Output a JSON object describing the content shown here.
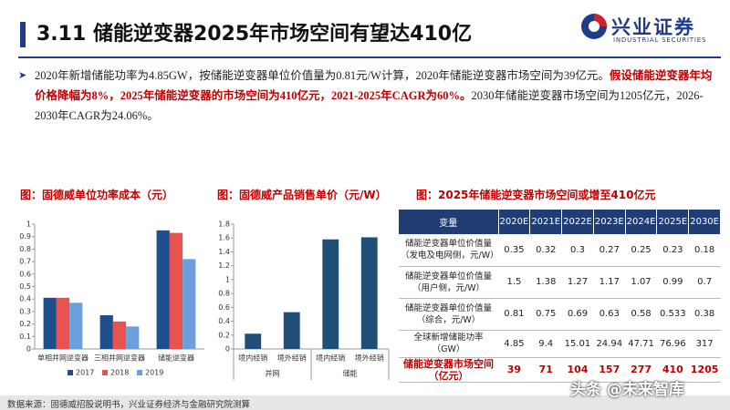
{
  "header": {
    "title": "3.11 储能逆变器2025年市场空间有望达410亿",
    "logo_name": "兴业证券",
    "logo_en": "INDUSTRIAL SECURITIES"
  },
  "bullet": {
    "segments": [
      {
        "text": "2020年新增储能功率为4.85GW，按储能逆变器单位价值量为0.81元/W计算，2020年储能逆变器市场空间为39亿元。",
        "highlight": false
      },
      {
        "text": "假设储能逆变器年均价格降幅为8%，2025年储能逆变器的市场空间为410亿元，2021-2025年CAGR为60%。",
        "highlight": true
      },
      {
        "text": "2030年储能逆变器市场空间为1205亿元，2026-2030年CAGR为24.06%。",
        "highlight": false
      }
    ]
  },
  "chart_data": [
    {
      "type": "bar",
      "title": "图：固德威单位功率成本（元）",
      "categories": [
        "单相并网逆变器",
        "三相并网逆变器",
        "储能逆变器"
      ],
      "series": [
        {
          "name": "2017",
          "color": "#1f4e8c",
          "values": [
            0.41,
            0.27,
            0.95
          ]
        },
        {
          "name": "2018",
          "color": "#e8534f",
          "values": [
            0.41,
            0.22,
            0.93
          ]
        },
        {
          "name": "2019",
          "color": "#6ca0dc",
          "values": [
            0.37,
            0.18,
            0.72
          ]
        }
      ],
      "ylim": [
        0,
        1
      ],
      "yticks": [
        0,
        0.1,
        0.2,
        0.3,
        0.4,
        0.5,
        0.6,
        0.7,
        0.8,
        0.9,
        1
      ],
      "grid": false
    },
    {
      "type": "bar",
      "title": "图：固德威产品销售单价（元/W）",
      "categories": [
        "境内经销",
        "境外经销",
        "境内经销",
        "境外经销"
      ],
      "groups": [
        "并网",
        "储能"
      ],
      "values": [
        0.22,
        0.53,
        1.58,
        1.61
      ],
      "color": "#1f4e79",
      "ylim": [
        0,
        1.8
      ],
      "yticks": [
        0,
        0.2,
        0.4,
        0.6,
        0.8,
        1,
        1.2,
        1.4,
        1.6,
        1.8
      ],
      "grid": false
    }
  ],
  "table": {
    "title": "图：2025年储能逆变器市场空间或增至410亿元",
    "header": [
      "变量",
      "2020E",
      "2021E",
      "2022E",
      "2023E",
      "2024E",
      "2025E",
      "2030E"
    ],
    "rows": [
      [
        "储能逆变器单位价值量（发电及电网侧，元/W）",
        "0.35",
        "0.32",
        "0.3",
        "0.27",
        "0.25",
        "0.23",
        "0.18"
      ],
      [
        "储能逆变器单位价值量（用户侧，元/W）",
        "1.5",
        "1.38",
        "1.27",
        "1.17",
        "1.07",
        "0.99",
        "0.7"
      ],
      [
        "储能逆变器单位价值量（综合，元/W）",
        "0.81",
        "0.75",
        "0.69",
        "0.63",
        "0.58",
        "0.533",
        "0.38"
      ],
      [
        "全球新增储能功率（GW）",
        "4.85",
        "9.4",
        "15.01",
        "24.94",
        "47.71",
        "76.96",
        "317"
      ],
      [
        "储能逆变器市场空间（亿元）",
        "39",
        "71",
        "104",
        "157",
        "277",
        "410",
        "1205"
      ]
    ]
  },
  "footer": "数据来源：固德威招股说明书，兴业证券经济与金融研究院测算",
  "watermark": "头条 @未来智库"
}
